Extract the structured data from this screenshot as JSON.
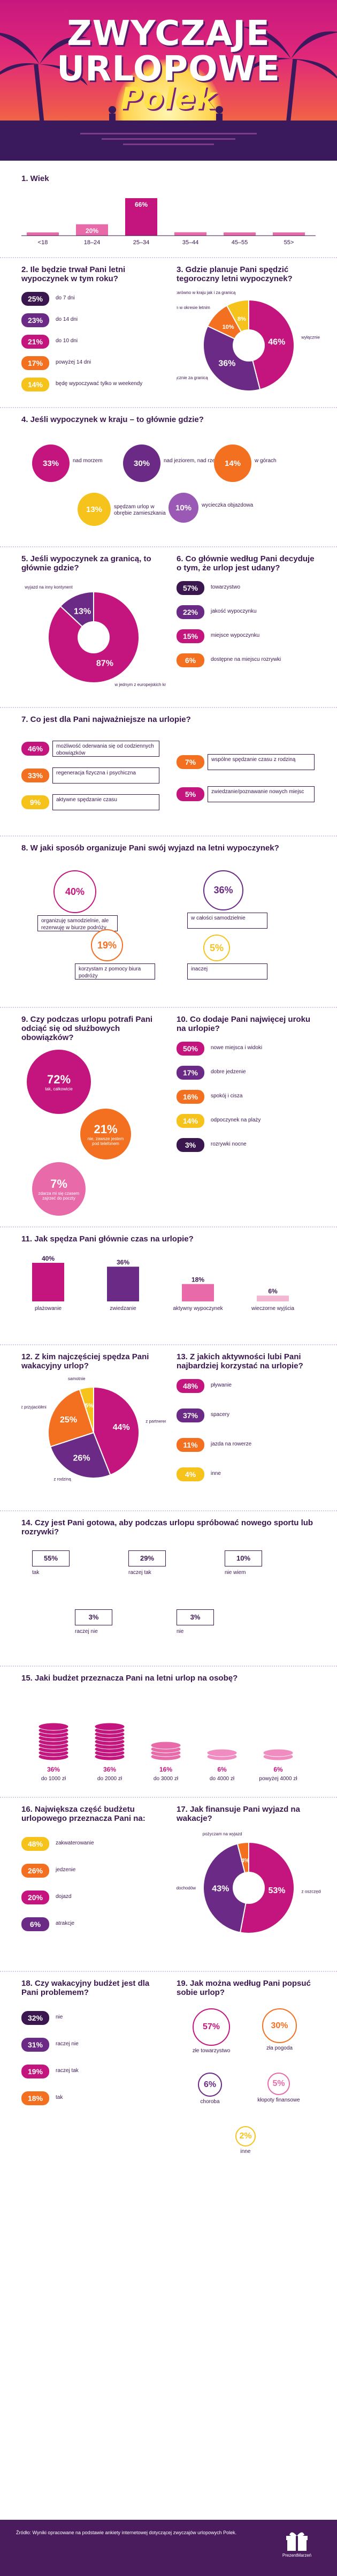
{
  "header": {
    "line1": "ZWYCZAJE",
    "line2": "URLOPOWE",
    "line3": "Polek"
  },
  "colors": {
    "dark": "#3b1750",
    "purple": "#6b2a86",
    "magenta": "#c4157e",
    "orange": "#f37021",
    "yellow": "#f6c31c"
  },
  "q1": {
    "title": "1. Wiek",
    "chart_data": {
      "type": "bar",
      "categories": [
        "<18",
        "18–24",
        "25–34",
        "35–44",
        "45–55",
        "55>"
      ],
      "values": [
        4,
        20,
        66,
        6,
        4,
        1
      ]
    }
  },
  "q2": {
    "title": "2. Ile będzie trwał Pani letni wypoczynek w tym roku?",
    "items": [
      {
        "pct": "25%",
        "label": "do 7 dni"
      },
      {
        "pct": "23%",
        "label": "do 14 dni"
      },
      {
        "pct": "21%",
        "label": "do 10 dni"
      },
      {
        "pct": "17%",
        "label": "powyżej 14 dni"
      },
      {
        "pct": "14%",
        "label": "będę wypoczywać tylko w weekendy"
      }
    ]
  },
  "q3": {
    "title": "3. Gdzie planuje Pani spędzić tegoroczny letni wypoczynek?",
    "chart_data": {
      "type": "pie",
      "values": [
        46,
        36,
        10,
        8
      ],
      "labels": [
        "wyłącznie w kraju",
        "wyłącznie za granicą",
        "nie wyjeżdżam w okresie letnim",
        "zarówno w kraju jak i za granicą"
      ]
    },
    "pcts": [
      "46%",
      "36%",
      "10%",
      "8%"
    ]
  },
  "q4": {
    "title": "4. Jeśli wypoczynek w kraju – to głównie gdzie?",
    "items": [
      {
        "pct": "33%",
        "label": "nad morzem"
      },
      {
        "pct": "30%",
        "label": "nad jeziorem, nad rzeką"
      },
      {
        "pct": "14%",
        "label": "w górach"
      },
      {
        "pct": "13%",
        "label": "spędzam urlop w obrębie zamieszkania"
      },
      {
        "pct": "10%",
        "label": "wycieczka objazdowa"
      }
    ]
  },
  "q5": {
    "title": "5. Jeśli wypoczynek za granicą, to głównie gdzie?",
    "chart_data": {
      "type": "pie",
      "values": [
        87,
        13
      ],
      "labels": [
        "w jednym z europejskich krajów",
        "wyjazd na inny kontynent"
      ]
    },
    "pcts": [
      "87%",
      "13%"
    ]
  },
  "q6": {
    "title": "6. Co głównie według Pani decyduje o tym, że urlop jest udany?",
    "items": [
      {
        "pct": "57%",
        "label": "towarzystwo"
      },
      {
        "pct": "22%",
        "label": "jakość wypoczynku"
      },
      {
        "pct": "15%",
        "label": "miejsce wypoczynku"
      },
      {
        "pct": "6%",
        "label": "dostępne na miejscu rozrywki"
      }
    ]
  },
  "q7": {
    "title": "7. Co jest dla Pani najważniejsze na urlopie?",
    "left": [
      {
        "pct": "46%",
        "label": "możliwość oderwania się od codziennych obowiązków"
      },
      {
        "pct": "33%",
        "label": "regeneracja fizyczna i psychiczna"
      },
      {
        "pct": "9%",
        "label": "aktywne spędzanie czasu"
      }
    ],
    "right": [
      {
        "pct": "7%",
        "label": "wspólne spędzanie czasu z rodziną"
      },
      {
        "pct": "5%",
        "label": "zwiedzanie/poznawanie nowych miejsc"
      }
    ]
  },
  "q8": {
    "title": "8. W jaki sposób organizuje Pani swój wyjazd na letni wypoczynek?",
    "items": [
      {
        "pct": "40%",
        "label": "organizuję samodzielnie, ale rezerwuję w biurze podróży"
      },
      {
        "pct": "36%",
        "label": "w całości samodzielnie"
      },
      {
        "pct": "19%",
        "label": "korzystam z pomocy biura podróży"
      },
      {
        "pct": "5%",
        "label": "inaczej"
      }
    ]
  },
  "q9": {
    "title": "9. Czy podczas urlopu potrafi Pani odciąć się od służbowych obowiązków?",
    "items": [
      {
        "pct": "72%",
        "label": "tak, całkowicie"
      },
      {
        "pct": "21%",
        "label": "nie, zawsze jestem pod telefonem"
      },
      {
        "pct": "7%",
        "label": "zdarza mi się czasem zajrzeć do poczty"
      }
    ]
  },
  "q10": {
    "title": "10. Co dodaje Pani najwięcej uroku na urlopie?",
    "items": [
      {
        "pct": "50%",
        "label": "nowe miejsca i widoki"
      },
      {
        "pct": "17%",
        "label": "dobre jedzenie"
      },
      {
        "pct": "16%",
        "label": "spokój i cisza"
      },
      {
        "pct": "14%",
        "label": "odpoczynek na plaży"
      },
      {
        "pct": "3%",
        "label": "rozrywki nocne"
      }
    ]
  },
  "q11": {
    "title": "11. Jak spędza Pani głównie czas na urlopie?",
    "chart_data": {
      "type": "bar",
      "categories": [
        "plażowanie",
        "zwiedzanie",
        "aktywny wypoczynek",
        "wieczorne wyjścia"
      ],
      "values": [
        40,
        36,
        18,
        6
      ]
    },
    "pcts": [
      "40%",
      "36%",
      "18%",
      "6%"
    ]
  },
  "q12": {
    "title": "12. Z kim najczęściej spędza Pani wakacyjny urlop?",
    "chart_data": {
      "type": "pie",
      "values": [
        44,
        26,
        25,
        5
      ],
      "labels": [
        "z partnerem",
        "z rodziną",
        "z przyjaciółmi",
        "samotnie"
      ]
    },
    "pcts": [
      "44%",
      "26%",
      "25%",
      "5%"
    ]
  },
  "q13": {
    "title": "13. Z jakich aktywności lubi Pani najbardziej korzystać na urlopie?",
    "items": [
      {
        "pct": "48%",
        "label": "pływanie"
      },
      {
        "pct": "37%",
        "label": "spacery"
      },
      {
        "pct": "11%",
        "label": "jazda na rowerze"
      },
      {
        "pct": "4%",
        "label": "inne"
      }
    ]
  },
  "q14": {
    "title": "14. Czy jest Pani gotowa, aby podczas urlopu spróbować nowego sportu lub rozrywki?",
    "items": [
      {
        "pct": "55%",
        "label": "tak"
      },
      {
        "pct": "29%",
        "label": "raczej tak"
      },
      {
        "pct": "10%",
        "label": "nie wiem"
      },
      {
        "pct": "3%",
        "label": "raczej nie"
      },
      {
        "pct": "3%",
        "label": "nie"
      }
    ]
  },
  "q15": {
    "title": "15. Jaki budżet przeznacza Pani na letni urlop na osobę?",
    "chart_data": {
      "type": "bar",
      "categories": [
        "do 1000 zł",
        "do 2000 zł",
        "do 3000 zł",
        "do 4000 zł",
        "powyżej 4000 zł"
      ],
      "values": [
        36,
        36,
        16,
        6,
        6
      ]
    },
    "pcts": [
      "36%",
      "36%",
      "16%",
      "6%",
      "6%"
    ]
  },
  "q16": {
    "title": "16. Największa część budżetu urlopowego przeznacza Pani na:",
    "items": [
      {
        "pct": "48%",
        "label": "zakwaterowanie"
      },
      {
        "pct": "26%",
        "label": "jedzenie"
      },
      {
        "pct": "20%",
        "label": "dojazd"
      },
      {
        "pct": "6%",
        "label": "atrakcje"
      }
    ]
  },
  "q17": {
    "title": "17. Jak finansuje Pani wyjazd na wakacje?",
    "chart_data": {
      "type": "pie",
      "values": [
        53,
        43,
        4
      ],
      "labels": [
        "z oszczędności",
        "z bieżących dochodów",
        "pożyczam na wyjazd"
      ]
    },
    "pcts": [
      "53%",
      "43%",
      "4%"
    ]
  },
  "q18": {
    "title": "18. Czy wakacyjny budżet jest dla Pani problemem?",
    "items": [
      {
        "pct": "32%",
        "label": "nie"
      },
      {
        "pct": "31%",
        "label": "raczej nie"
      },
      {
        "pct": "19%",
        "label": "raczej tak"
      },
      {
        "pct": "18%",
        "label": "tak"
      }
    ]
  },
  "q19": {
    "title": "19. Jak można według Pani popsuć sobie urlop?",
    "items": [
      {
        "pct": "57%",
        "label": "złe towarzystwo"
      },
      {
        "pct": "30%",
        "label": "zła pogoda"
      },
      {
        "pct": "6%",
        "label": "choroba"
      },
      {
        "pct": "5%",
        "label": "kłopoty finansowe"
      },
      {
        "pct": "2%",
        "label": "inne"
      }
    ]
  },
  "footer": {
    "note": "Źródło: Wyniki opracowane na podstawie ankiety internetowej dotyczącej zwyczajów urlopowych Polek.",
    "logo": "PrezentMarzeń"
  }
}
